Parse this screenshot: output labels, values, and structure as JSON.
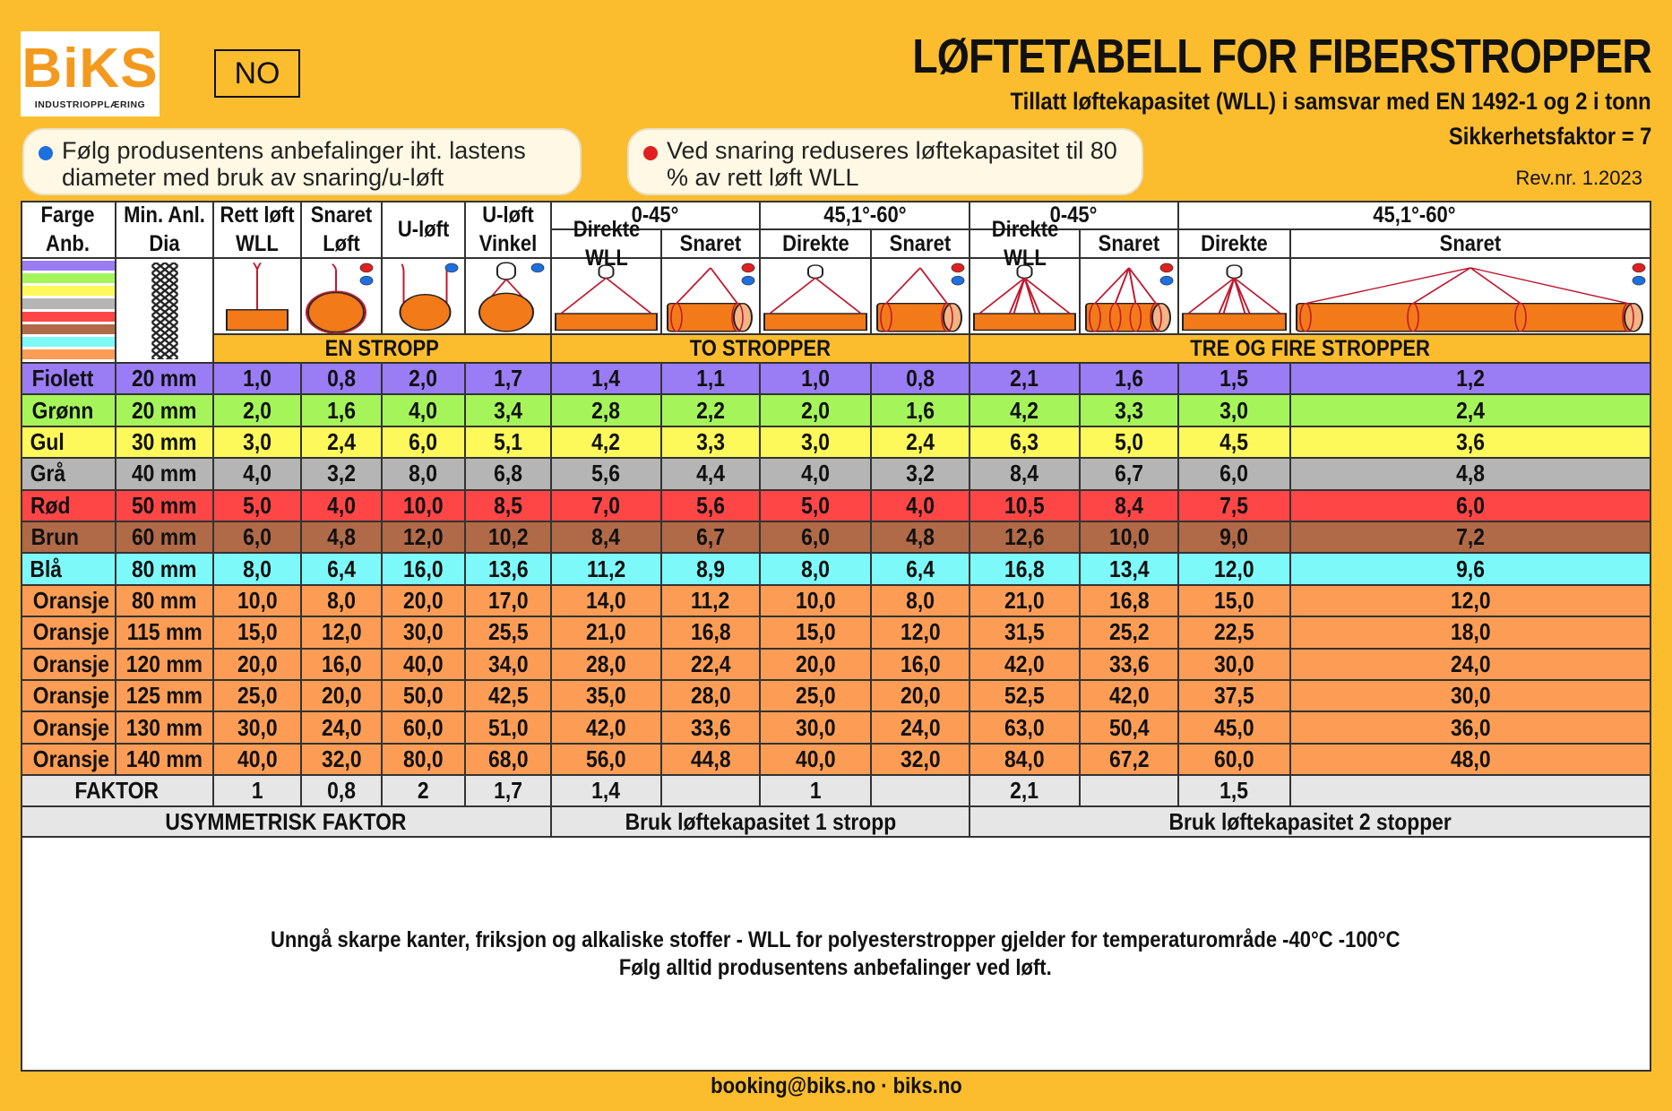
{
  "logo": {
    "mark": "BiKS",
    "sub": "INDUSTRIOPPLÆRING"
  },
  "language_box": "NO",
  "title": "LØFTETABELL FOR FIBERSTROPPER",
  "subtitle": "Tillatt løftekapasitet (WLL) i samsvar med EN 1492-1 og 2 i tonn",
  "safety_factor": "Sikkerhetsfaktor = 7",
  "revision": "Rev.nr. 1.2023",
  "notes": [
    {
      "text": "Følg produsentens anbefalinger iht. lastens diameter med bruk av snaring/u-løft",
      "dot_color": "#1e6fe0"
    },
    {
      "text": "Ved snaring reduseres løftekapasitet til 80 % av rett løft WLL",
      "dot_color": "#e02020"
    }
  ],
  "headers": {
    "farge": "Farge Anb.",
    "min_dia": "Min. Anl. Dia",
    "rett": "Rett løft WLL",
    "snaret": "Snaret Løft",
    "uloft": "U-løft",
    "uvinkel": "U-løft Vinkel",
    "angle1": "0-45°",
    "angle2": "45,1°-60°",
    "angle3": "0-45°",
    "angle4": "45,1°-60°",
    "direkte_wll": "Direkte WLL",
    "snaret_sub": "Snaret",
    "direkte": "Direkte"
  },
  "groups": {
    "one": "EN STROPP",
    "two": "TO STROPPER",
    "three": "TRE OG FIRE STROPPER"
  },
  "swatch_colors": [
    "#9a7cf5",
    "#a5f55a",
    "#fdf95a",
    "#b5b5b5",
    "#fe4646",
    "#b06a48",
    "#7ef9f9",
    "#fd9d55"
  ],
  "rows": [
    {
      "name": "Fiolett",
      "dia": "20 mm",
      "color": "#9a7cf5",
      "v": [
        "1,0",
        "0,8",
        "2,0",
        "1,7",
        "1,4",
        "1,1",
        "1,0",
        "0,8",
        "2,1",
        "1,6",
        "1,5",
        "1,2"
      ]
    },
    {
      "name": "Grønn",
      "dia": "20 mm",
      "color": "#a5f55a",
      "v": [
        "2,0",
        "1,6",
        "4,0",
        "3,4",
        "2,8",
        "2,2",
        "2,0",
        "1,6",
        "4,2",
        "3,3",
        "3,0",
        "2,4"
      ]
    },
    {
      "name": "Gul",
      "dia": "30 mm",
      "color": "#fdf95a",
      "v": [
        "3,0",
        "2,4",
        "6,0",
        "5,1",
        "4,2",
        "3,3",
        "3,0",
        "2,4",
        "6,3",
        "5,0",
        "4,5",
        "3,6"
      ]
    },
    {
      "name": "Grå",
      "dia": "40 mm",
      "color": "#b5b5b5",
      "v": [
        "4,0",
        "3,2",
        "8,0",
        "6,8",
        "5,6",
        "4,4",
        "4,0",
        "3,2",
        "8,4",
        "6,7",
        "6,0",
        "4,8"
      ]
    },
    {
      "name": "Rød",
      "dia": "50 mm",
      "color": "#fe4646",
      "v": [
        "5,0",
        "4,0",
        "10,0",
        "8,5",
        "7,0",
        "5,6",
        "5,0",
        "4,0",
        "10,5",
        "8,4",
        "7,5",
        "6,0"
      ]
    },
    {
      "name": "Brun",
      "dia": "60 mm",
      "color": "#b06a48",
      "v": [
        "6,0",
        "4,8",
        "12,0",
        "10,2",
        "8,4",
        "6,7",
        "6,0",
        "4,8",
        "12,6",
        "10,0",
        "9,0",
        "7,2"
      ]
    },
    {
      "name": "Blå",
      "dia": "80 mm",
      "color": "#7ef9f9",
      "v": [
        "8,0",
        "6,4",
        "16,0",
        "13,6",
        "11,2",
        "8,9",
        "8,0",
        "6,4",
        "16,8",
        "13,4",
        "12,0",
        "9,6"
      ]
    },
    {
      "name": "Oransje",
      "dia": "80 mm",
      "color": "#fd9d55",
      "v": [
        "10,0",
        "8,0",
        "20,0",
        "17,0",
        "14,0",
        "11,2",
        "10,0",
        "8,0",
        "21,0",
        "16,8",
        "15,0",
        "12,0"
      ]
    },
    {
      "name": "Oransje",
      "dia": "115 mm",
      "color": "#fd9d55",
      "v": [
        "15,0",
        "12,0",
        "30,0",
        "25,5",
        "21,0",
        "16,8",
        "15,0",
        "12,0",
        "31,5",
        "25,2",
        "22,5",
        "18,0"
      ]
    },
    {
      "name": "Oransje",
      "dia": "120 mm",
      "color": "#fd9d55",
      "v": [
        "20,0",
        "16,0",
        "40,0",
        "34,0",
        "28,0",
        "22,4",
        "20,0",
        "16,0",
        "42,0",
        "33,6",
        "30,0",
        "24,0"
      ]
    },
    {
      "name": "Oransje",
      "dia": "125 mm",
      "color": "#fd9d55",
      "v": [
        "25,0",
        "20,0",
        "50,0",
        "42,5",
        "35,0",
        "28,0",
        "25,0",
        "20,0",
        "52,5",
        "42,0",
        "37,5",
        "30,0"
      ]
    },
    {
      "name": "Oransje",
      "dia": "130 mm",
      "color": "#fd9d55",
      "v": [
        "30,0",
        "24,0",
        "60,0",
        "51,0",
        "42,0",
        "33,6",
        "30,0",
        "24,0",
        "63,0",
        "50,4",
        "45,0",
        "36,0"
      ]
    },
    {
      "name": "Oransje",
      "dia": "140 mm",
      "color": "#fd9d55",
      "v": [
        "40,0",
        "32,0",
        "80,0",
        "68,0",
        "56,0",
        "44,8",
        "40,0",
        "32,0",
        "84,0",
        "67,2",
        "60,0",
        "48,0"
      ]
    }
  ],
  "faktor": {
    "label": "FAKTOR",
    "v": [
      "1",
      "0,8",
      "2",
      "1,7",
      "1,4",
      "",
      "1",
      "",
      "2,1",
      "",
      "1,5",
      ""
    ]
  },
  "usym": {
    "label": "USYMMETRISK FAKTOR",
    "two": "Bruk løftekapasitet 1 stropp",
    "three": "Bruk løftekapasitet 2 stopper"
  },
  "footer_note": [
    "Unngå skarpe kanter, friksjon og alkaliske stoffer - WLL for polyesterstropper gjelder for temperaturområde -40°C -100°C",
    "Følg alltid produsentens anbefalinger ved løft."
  ],
  "contact": "booking@biks.no  ·  biks.no",
  "colors": {
    "background": "#fbbd2e",
    "header_band": "#fbbd2e",
    "faktor_row": "#e6e6e6",
    "sling": "#c0182f",
    "load": "#f37a18"
  }
}
